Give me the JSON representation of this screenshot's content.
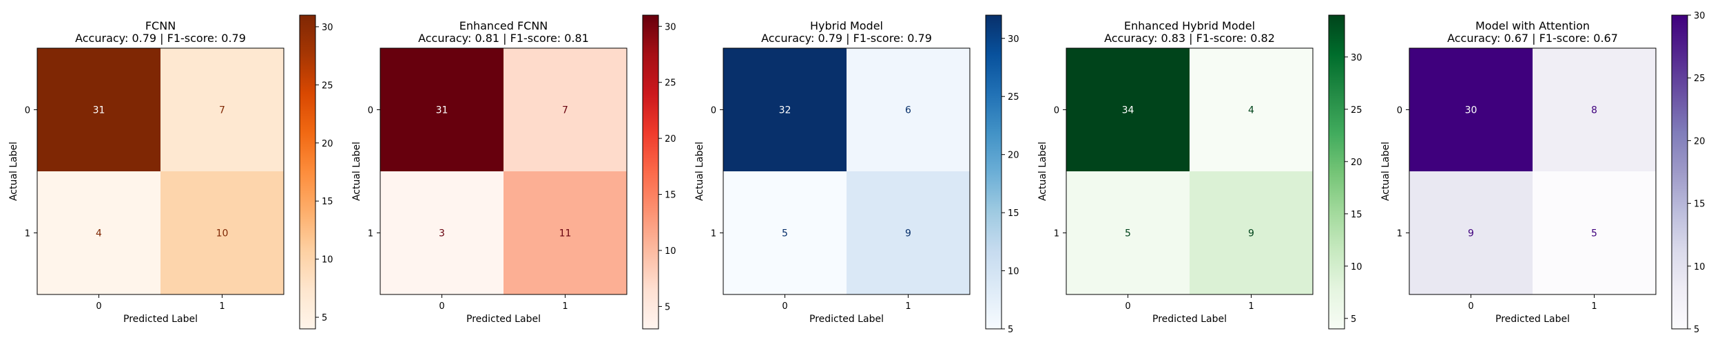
{
  "chart_data": [
    {
      "type": "heatmap",
      "title": "FCNN",
      "subtitle": "Accuracy: 0.79 | F1-score: 0.79",
      "xlabel": "Predicted Label",
      "ylabel": "Actual Label",
      "x_categories": [
        "0",
        "1"
      ],
      "y_categories": [
        "0",
        "1"
      ],
      "matrix": [
        [
          31,
          7
        ],
        [
          4,
          10
        ]
      ],
      "colormap": "Oranges",
      "colorbar_range": [
        4,
        31
      ],
      "colorbar_ticks": [
        5,
        10,
        15,
        20,
        25,
        30
      ]
    },
    {
      "type": "heatmap",
      "title": "Enhanced FCNN",
      "subtitle": "Accuracy: 0.81 | F1-score: 0.81",
      "xlabel": "Predicted Label",
      "ylabel": "Actual Label",
      "x_categories": [
        "0",
        "1"
      ],
      "y_categories": [
        "0",
        "1"
      ],
      "matrix": [
        [
          31,
          7
        ],
        [
          3,
          11
        ]
      ],
      "colormap": "Reds",
      "colorbar_range": [
        3,
        31
      ],
      "colorbar_ticks": [
        5,
        10,
        15,
        20,
        25,
        30
      ]
    },
    {
      "type": "heatmap",
      "title": "Hybrid Model",
      "subtitle": "Accuracy: 0.79 | F1-score: 0.79",
      "xlabel": "Predicted Label",
      "ylabel": "Actual Label",
      "x_categories": [
        "0",
        "1"
      ],
      "y_categories": [
        "0",
        "1"
      ],
      "matrix": [
        [
          32,
          6
        ],
        [
          5,
          9
        ]
      ],
      "colormap": "Blues",
      "colorbar_range": [
        5,
        32
      ],
      "colorbar_ticks": [
        5,
        10,
        15,
        20,
        25,
        30
      ]
    },
    {
      "type": "heatmap",
      "title": "Enhanced Hybrid Model",
      "subtitle": "Accuracy: 0.83 | F1-score: 0.82",
      "xlabel": "Predicted Label",
      "ylabel": "Actual Label",
      "x_categories": [
        "0",
        "1"
      ],
      "y_categories": [
        "0",
        "1"
      ],
      "matrix": [
        [
          34,
          4
        ],
        [
          5,
          9
        ]
      ],
      "colormap": "Greens",
      "colorbar_range": [
        4,
        34
      ],
      "colorbar_ticks": [
        5,
        10,
        15,
        20,
        25,
        30
      ]
    },
    {
      "type": "heatmap",
      "title": "Model with Attention",
      "subtitle": "Accuracy: 0.67 | F1-score: 0.67",
      "xlabel": "Predicted Label",
      "ylabel": "Actual Label",
      "x_categories": [
        "0",
        "1"
      ],
      "y_categories": [
        "0",
        "1"
      ],
      "matrix": [
        [
          30,
          8
        ],
        [
          9,
          5
        ]
      ],
      "colormap": "Purples",
      "colorbar_range": [
        5,
        30
      ],
      "colorbar_ticks": [
        5,
        10,
        15,
        20,
        25,
        30
      ]
    }
  ],
  "colormaps": {
    "Oranges": [
      "#fff5eb",
      "#fee6ce",
      "#fdd0a2",
      "#fdae6b",
      "#fd8d3c",
      "#f16913",
      "#d94801",
      "#a63603",
      "#7f2704"
    ],
    "Reds": [
      "#fff5f0",
      "#fee0d2",
      "#fcbba1",
      "#fc9272",
      "#fb6a4a",
      "#ef3b2c",
      "#cb181d",
      "#a50f15",
      "#67000d"
    ],
    "Blues": [
      "#f7fbff",
      "#deebf7",
      "#c6dbef",
      "#9ecae1",
      "#6baed6",
      "#4292c6",
      "#2171b5",
      "#08519c",
      "#08306b"
    ],
    "Greens": [
      "#f7fcf5",
      "#e5f5e0",
      "#c7e9c0",
      "#a1d99b",
      "#74c476",
      "#41ab5d",
      "#238b45",
      "#006d2c",
      "#00441b"
    ],
    "Purples": [
      "#fcfbfd",
      "#efedf5",
      "#dadaeb",
      "#bcbddc",
      "#9e9ac8",
      "#807dba",
      "#6a51a3",
      "#54278f",
      "#3f007d"
    ]
  }
}
